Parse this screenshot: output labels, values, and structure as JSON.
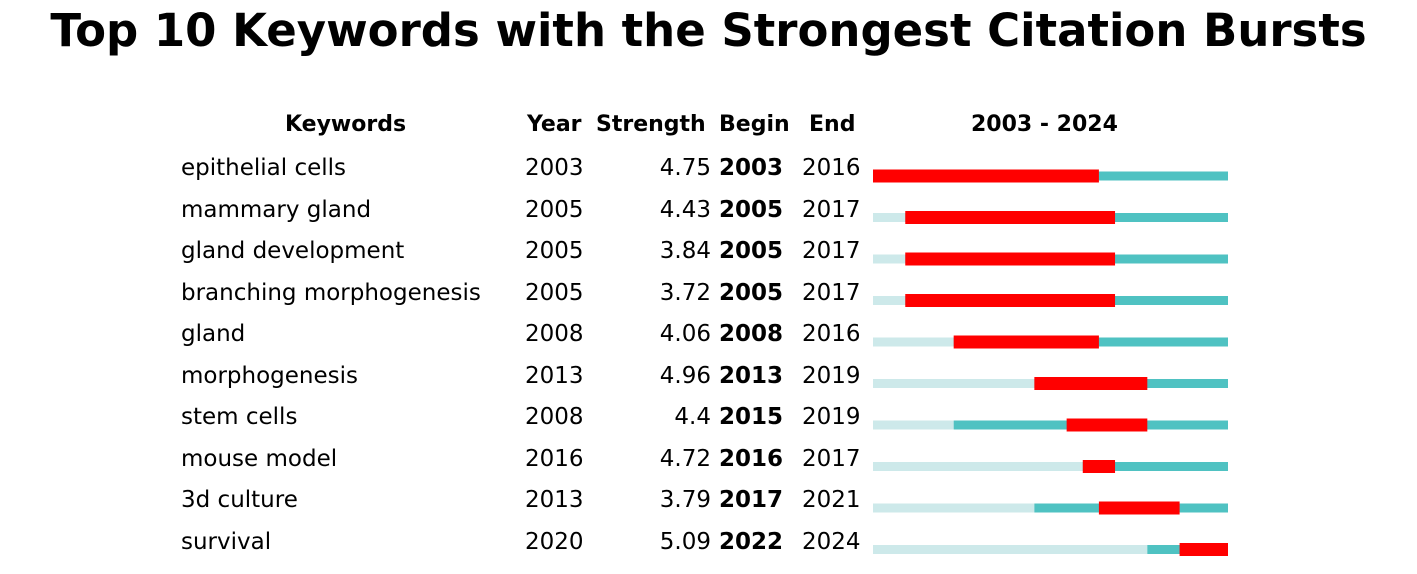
{
  "title": "Top 10 Keywords with the Strongest Citation Bursts",
  "headers": {
    "keywords": "Keywords",
    "year": "Year",
    "strength": "Strength",
    "begin": "Begin",
    "end": "End",
    "range": "2003 - 2024"
  },
  "colors": {
    "burst": "#ff0000",
    "active": "#4fc2c2",
    "inactive": "#cde9ea"
  },
  "chart_data": {
    "type": "table",
    "range_start": 2003,
    "range_end": 2024,
    "rows": [
      {
        "keyword": "epithelial cells",
        "year": "2003",
        "strength": "4.75",
        "begin": "2003",
        "end": "2016"
      },
      {
        "keyword": "mammary gland",
        "year": "2005",
        "strength": "4.43",
        "begin": "2005",
        "end": "2017"
      },
      {
        "keyword": "gland development",
        "year": "2005",
        "strength": "3.84",
        "begin": "2005",
        "end": "2017"
      },
      {
        "keyword": "branching morphogenesis",
        "year": "2005",
        "strength": "3.72",
        "begin": "2005",
        "end": "2017"
      },
      {
        "keyword": "gland",
        "year": "2008",
        "strength": "4.06",
        "begin": "2008",
        "end": "2016"
      },
      {
        "keyword": "morphogenesis",
        "year": "2013",
        "strength": "4.96",
        "begin": "2013",
        "end": "2019"
      },
      {
        "keyword": "stem cells",
        "year": "2008",
        "strength": "4.4",
        "begin": "2015",
        "end": "2019"
      },
      {
        "keyword": "mouse model",
        "year": "2016",
        "strength": "4.72",
        "begin": "2016",
        "end": "2017"
      },
      {
        "keyword": "3d culture",
        "year": "2013",
        "strength": "3.79",
        "begin": "2017",
        "end": "2021"
      },
      {
        "keyword": "survival",
        "year": "2020",
        "strength": "5.09",
        "begin": "2022",
        "end": "2024"
      }
    ]
  }
}
